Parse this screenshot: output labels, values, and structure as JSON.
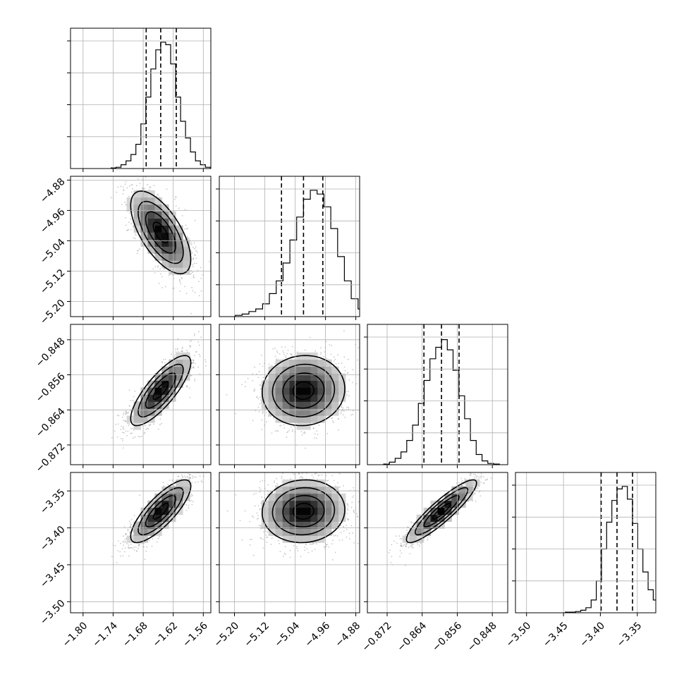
{
  "chart_data": {
    "type": "corner",
    "parameters": [
      {
        "ticks": [
          -1.8,
          -1.74,
          -1.68,
          -1.62,
          -1.56
        ],
        "tick_labels": [
          "−1.80",
          "−1.74",
          "−1.68",
          "−1.62",
          "−1.56"
        ],
        "range": [
          -1.825,
          -1.545
        ],
        "median": -1.645,
        "q16": -1.674,
        "q84": -1.614
      },
      {
        "ticks": [
          -5.2,
          -5.12,
          -5.04,
          -4.96,
          -4.88
        ],
        "tick_labels": [
          "−5.20",
          "−5.12",
          "−5.04",
          "−4.96",
          "−4.88"
        ],
        "range": [
          -5.24,
          -4.87
        ],
        "median": -5.018,
        "q16": -5.076,
        "q84": -4.967
      },
      {
        "ticks": [
          -0.872,
          -0.864,
          -0.856,
          -0.848
        ],
        "tick_labels": [
          "−0.872",
          "−0.864",
          "−0.856",
          "−0.848"
        ],
        "range": [
          -0.8765,
          -0.8445
        ],
        "median": -0.8596,
        "q16": -0.8636,
        "q84": -0.8556
      },
      {
        "ticks": [
          -3.5,
          -3.45,
          -3.4,
          -3.35
        ],
        "tick_labels": [
          "−3.50",
          "−3.45",
          "−3.40",
          "−3.35"
        ],
        "range": [
          -3.515,
          -3.325
        ],
        "median": -3.3775,
        "q16": -3.399,
        "q84": -3.3565
      }
    ],
    "histograms": [
      {
        "counts": [
          0.005,
          0.01,
          0.03,
          0.06,
          0.11,
          0.19,
          0.35,
          0.56,
          0.78,
          0.93,
          0.99,
          0.97,
          0.82,
          0.56,
          0.37,
          0.24,
          0.13,
          0.06,
          0.03,
          0.01
        ]
      },
      {
        "counts": [
          0.01,
          0.02,
          0.04,
          0.06,
          0.1,
          0.18,
          0.28,
          0.42,
          0.6,
          0.78,
          0.92,
          0.99,
          0.96,
          0.86,
          0.69,
          0.47,
          0.28,
          0.14,
          0.06,
          0.02
        ]
      },
      {
        "counts": [
          0.005,
          0.02,
          0.05,
          0.1,
          0.19,
          0.31,
          0.48,
          0.66,
          0.83,
          0.92,
          0.98,
          0.9,
          0.74,
          0.54,
          0.36,
          0.19,
          0.08,
          0.03,
          0.01,
          0.005
        ]
      },
      {
        "counts": [
          0.005,
          0.005,
          0.01,
          0.02,
          0.04,
          0.1,
          0.25,
          0.5,
          0.71,
          0.88,
          0.97,
          0.99,
          0.89,
          0.7,
          0.5,
          0.32,
          0.18,
          0.1,
          0.04,
          0.02
        ]
      }
    ],
    "correlations": {
      "1-0": -0.65,
      "2-0": 0.8,
      "2-1": 0.05,
      "3-0": 0.8,
      "3-1": 0.05,
      "3-2": 0.9
    },
    "contour_levels_sigma": [
      0.5,
      1.0,
      1.5,
      2.0
    ],
    "grid": true
  }
}
